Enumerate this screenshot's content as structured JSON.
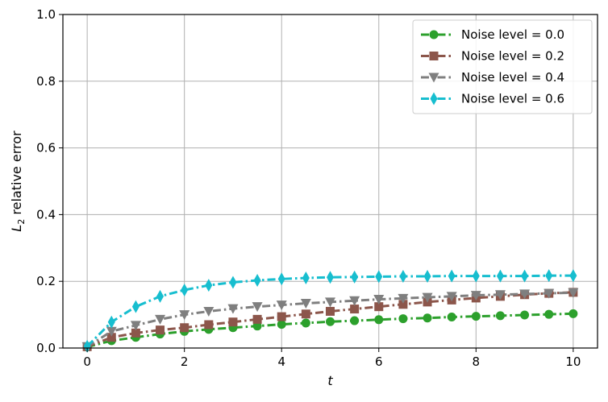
{
  "chart_data": {
    "type": "line",
    "title": "",
    "xlabel": "t",
    "ylabel": "L2 relative error",
    "ylabel_base": "L",
    "ylabel_sub": "2",
    "ylabel_rest": " relative error",
    "xlim": [
      -0.5,
      10.5
    ],
    "ylim": [
      0.0,
      1.0
    ],
    "x_ticks": [
      0,
      2,
      4,
      6,
      8,
      10
    ],
    "x_tick_labels": [
      "0",
      "2",
      "4",
      "6",
      "8",
      "10"
    ],
    "y_ticks": [
      0.0,
      0.2,
      0.4,
      0.6,
      0.8,
      1.0
    ],
    "y_tick_labels": [
      "0.0",
      "0.2",
      "0.4",
      "0.6",
      "0.8",
      "1.0"
    ],
    "grid": true,
    "legend_position": "top-right",
    "x": [
      0,
      0.5,
      1.0,
      1.5,
      2.0,
      2.5,
      3.0,
      3.5,
      4.0,
      4.5,
      5.0,
      5.5,
      6.0,
      6.5,
      7.0,
      7.5,
      8.0,
      8.5,
      9.0,
      9.5,
      10.0
    ],
    "series": [
      {
        "name": "Noise level = 0.0",
        "legend_prefix": "Noise level ",
        "legend_value": "= 0.0",
        "color": "#2ca02c",
        "marker": "circle",
        "values": [
          0.003,
          0.022,
          0.032,
          0.042,
          0.05,
          0.056,
          0.061,
          0.066,
          0.071,
          0.075,
          0.079,
          0.082,
          0.085,
          0.088,
          0.09,
          0.093,
          0.095,
          0.097,
          0.099,
          0.101,
          0.103
        ]
      },
      {
        "name": "Noise level = 0.2",
        "legend_prefix": "Noise level ",
        "legend_value": "= 0.2",
        "color": "#8c564b",
        "marker": "square",
        "values": [
          0.004,
          0.032,
          0.045,
          0.054,
          0.061,
          0.07,
          0.078,
          0.086,
          0.094,
          0.102,
          0.11,
          0.117,
          0.124,
          0.131,
          0.138,
          0.144,
          0.15,
          0.155,
          0.16,
          0.164,
          0.167
        ]
      },
      {
        "name": "Noise level = 0.4",
        "legend_prefix": "Noise level ",
        "legend_value": "= 0.4",
        "color": "#7f7f7f",
        "marker": "triangle-down",
        "values": [
          0.004,
          0.05,
          0.068,
          0.086,
          0.1,
          0.11,
          0.118,
          0.124,
          0.129,
          0.134,
          0.138,
          0.142,
          0.146,
          0.149,
          0.152,
          0.155,
          0.158,
          0.16,
          0.162,
          0.164,
          0.166
        ]
      },
      {
        "name": "Noise level = 0.6",
        "legend_prefix": "Noise level ",
        "legend_value": "= 0.6",
        "color": "#17becf",
        "marker": "thin-diamond",
        "values": [
          0.005,
          0.078,
          0.124,
          0.155,
          0.174,
          0.188,
          0.197,
          0.203,
          0.207,
          0.21,
          0.212,
          0.213,
          0.214,
          0.215,
          0.215,
          0.216,
          0.216,
          0.216,
          0.216,
          0.217,
          0.217
        ]
      }
    ]
  }
}
